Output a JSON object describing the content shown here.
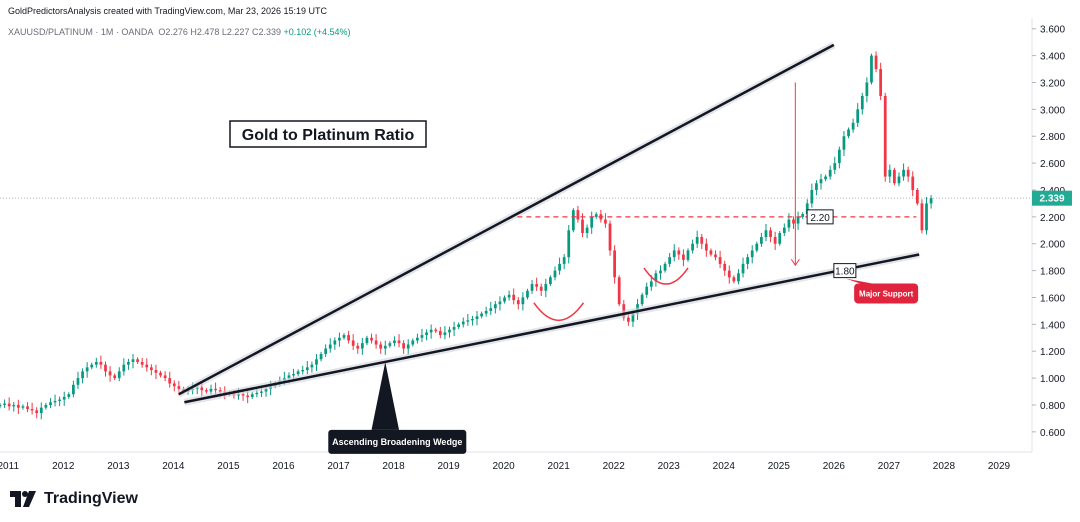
{
  "header": {
    "credit": "GoldPredictorsAnalysis created with TradingView.com, Mar 23, 2026 15:19 UTC",
    "symbol": "XAUUSD/PLATINUM · 1M · OANDA",
    "ohlc": "O2.276 H2.478 L2.227 C2.339",
    "change": "+0.102 (+4.54%)"
  },
  "logo": {
    "text": "TradingView",
    "icon": "tradingview-logo-icon"
  },
  "colors": {
    "up": "#089981",
    "down": "#f23645",
    "line": "#131722",
    "price_tag": "#22ab94",
    "callout": "#e0243d"
  },
  "chart_data": {
    "type": "candlestick",
    "title": "Gold to Platinum Ratio",
    "x_ticks": [
      "2011",
      "2012",
      "2013",
      "2014",
      "2015",
      "2016",
      "2017",
      "2018",
      "2019",
      "2020",
      "2021",
      "2022",
      "2023",
      "2024",
      "2025",
      "2026",
      "2027",
      "2028",
      "2029"
    ],
    "y_ticks": [
      "3.600",
      "3.400",
      "3.200",
      "3.000",
      "2.800",
      "2.600",
      "2.400",
      "2.200",
      "2.000",
      "1.800",
      "1.600",
      "1.400",
      "1.200",
      "1.000",
      "0.800",
      "0.600"
    ],
    "ylim": [
      0.45,
      3.68
    ],
    "xlim": [
      2010.85,
      2029.6
    ],
    "last_price": "2.339",
    "closes": [
      0.8,
      0.81,
      0.79,
      0.8,
      0.78,
      0.79,
      0.77,
      0.76,
      0.74,
      0.78,
      0.8,
      0.82,
      0.83,
      0.84,
      0.86,
      0.88,
      0.95,
      1.0,
      1.05,
      1.08,
      1.1,
      1.12,
      1.1,
      1.05,
      1.02,
      1.0,
      1.05,
      1.1,
      1.12,
      1.14,
      1.12,
      1.1,
      1.08,
      1.06,
      1.04,
      1.02,
      1.0,
      0.96,
      0.94,
      0.92,
      0.9,
      0.91,
      0.92,
      0.93,
      0.91,
      0.9,
      0.92,
      0.91,
      0.9,
      0.89,
      0.88,
      0.87,
      0.88,
      0.87,
      0.86,
      0.88,
      0.89,
      0.9,
      0.92,
      0.94,
      0.96,
      0.98,
      1.0,
      1.02,
      1.03,
      1.05,
      1.06,
      1.08,
      1.1,
      1.14,
      1.18,
      1.22,
      1.25,
      1.28,
      1.3,
      1.32,
      1.28,
      1.24,
      1.22,
      1.26,
      1.3,
      1.28,
      1.25,
      1.22,
      1.24,
      1.26,
      1.28,
      1.26,
      1.22,
      1.25,
      1.28,
      1.3,
      1.32,
      1.34,
      1.36,
      1.35,
      1.32,
      1.34,
      1.36,
      1.38,
      1.4,
      1.42,
      1.43,
      1.44,
      1.46,
      1.48,
      1.5,
      1.52,
      1.55,
      1.57,
      1.6,
      1.62,
      1.58,
      1.55,
      1.6,
      1.65,
      1.7,
      1.68,
      1.65,
      1.7,
      1.75,
      1.8,
      1.85,
      1.9,
      2.1,
      2.25,
      2.18,
      2.08,
      2.12,
      2.2,
      2.22,
      2.18,
      2.15,
      1.95,
      1.75,
      1.55,
      1.45,
      1.42,
      1.48,
      1.55,
      1.62,
      1.68,
      1.72,
      1.78,
      1.8,
      1.85,
      1.9,
      1.95,
      1.92,
      1.88,
      1.95,
      2.0,
      2.05,
      2.0,
      1.95,
      1.92,
      1.9,
      1.85,
      1.8,
      1.75,
      1.72,
      1.78,
      1.85,
      1.9,
      1.95,
      2.0,
      2.05,
      2.1,
      2.05,
      2.0,
      2.08,
      2.12,
      2.18,
      2.15,
      2.2,
      2.22,
      2.3,
      2.4,
      2.45,
      2.48,
      2.5,
      2.55,
      2.6,
      2.7,
      2.8,
      2.85,
      2.9,
      3.0,
      3.1,
      3.2,
      3.4,
      3.3,
      3.1,
      2.5,
      2.55,
      2.45,
      2.5,
      2.55,
      2.5,
      2.4,
      2.3,
      2.1,
      2.3,
      2.339
    ],
    "wedge": {
      "upper": [
        [
          2014.1,
          0.88
        ],
        [
          2026.0,
          3.48
        ]
      ],
      "lower": [
        [
          2014.2,
          0.82
        ],
        [
          2027.55,
          1.92
        ]
      ]
    },
    "resistance": {
      "y": 2.2,
      "from": 2020.25,
      "to": 2027.5
    },
    "annotations": {
      "support_label": "Major Support",
      "wedge_label": "Ascending Broadening Wedge",
      "level_220": "2.20",
      "level_180": "1.80"
    }
  }
}
